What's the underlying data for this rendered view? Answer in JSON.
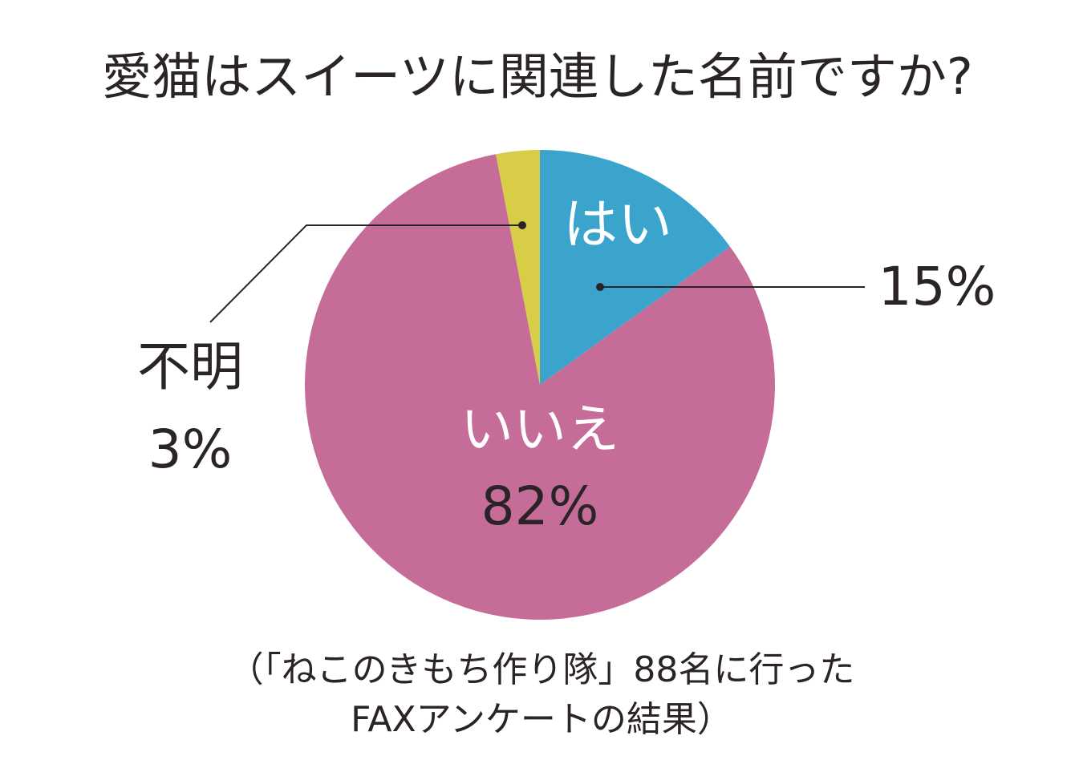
{
  "chart_data": {
    "type": "pie",
    "title": "愛猫はスイーツに関連した名前ですか?",
    "categories": [
      "はい",
      "いいえ",
      "不明"
    ],
    "values": [
      15,
      82,
      3
    ],
    "value_labels": [
      "15%",
      "82%",
      "3%"
    ],
    "colors": [
      "#3ba4cd",
      "#c66c99",
      "#d8cd47"
    ],
    "notes": [
      "（「ねこのきもち作り隊」88名に行った",
      "FAXアンケートの結果）"
    ]
  }
}
